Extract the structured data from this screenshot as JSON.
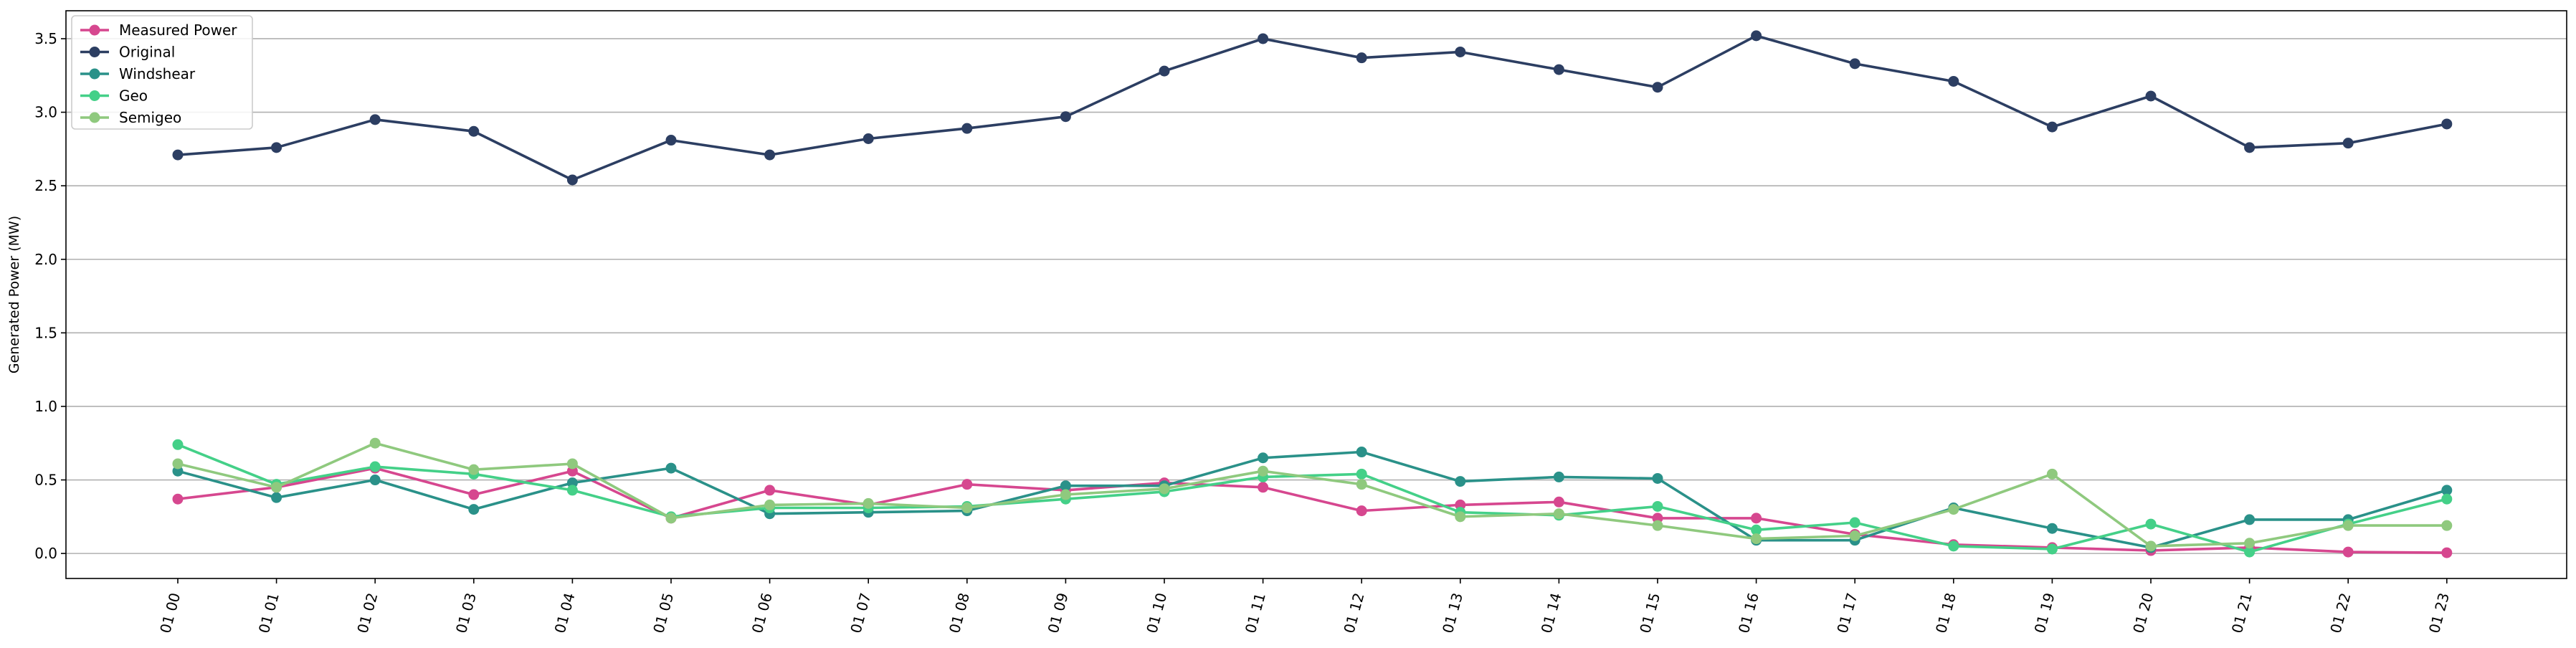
{
  "chart_data": {
    "type": "line",
    "title": "",
    "xlabel": "",
    "ylabel": "Generated Power (MW)",
    "categories": [
      "01 00",
      "01 01",
      "01 02",
      "01 03",
      "01 04",
      "01 05",
      "01 06",
      "01 07",
      "01 08",
      "01 09",
      "01 10",
      "01 11",
      "01 12",
      "01 13",
      "01 14",
      "01 15",
      "01 16",
      "01 17",
      "01 18",
      "01 19",
      "01 20",
      "01 21",
      "01 22",
      "01 23"
    ],
    "ylim": [
      -0.17,
      3.69
    ],
    "yticks": [
      "0.0",
      "0.5",
      "1.0",
      "1.5",
      "2.0",
      "2.5",
      "3.0",
      "3.5"
    ],
    "grid": "horizontal",
    "legend_position": "top-left",
    "series": [
      {
        "name": "Measured Power",
        "color": "#d6478f",
        "values": [
          0.37,
          0.45,
          0.58,
          0.4,
          0.56,
          0.24,
          0.43,
          0.33,
          0.47,
          0.43,
          0.48,
          0.45,
          0.29,
          0.33,
          0.35,
          0.24,
          0.24,
          0.13,
          0.06,
          0.04,
          0.02,
          0.04,
          0.01,
          0.005
        ]
      },
      {
        "name": "Original",
        "color": "#2c3e62",
        "values": [
          2.71,
          2.76,
          2.95,
          2.87,
          2.54,
          2.81,
          2.71,
          2.82,
          2.89,
          2.97,
          3.28,
          3.5,
          3.37,
          3.41,
          3.29,
          3.17,
          3.52,
          3.33,
          3.21,
          2.9,
          3.11,
          2.76,
          2.79,
          2.92
        ]
      },
      {
        "name": "Windshear",
        "color": "#2a9189",
        "values": [
          0.56,
          0.38,
          0.5,
          0.3,
          0.48,
          0.58,
          0.27,
          0.28,
          0.29,
          0.46,
          0.46,
          0.65,
          0.69,
          0.49,
          0.52,
          0.51,
          0.09,
          0.09,
          0.31,
          0.17,
          0.04,
          0.23,
          0.23,
          0.43
        ]
      },
      {
        "name": "Geo",
        "color": "#44d088",
        "values": [
          0.74,
          0.47,
          0.59,
          0.54,
          0.43,
          0.25,
          0.31,
          0.31,
          0.32,
          0.37,
          0.42,
          0.52,
          0.54,
          0.28,
          0.26,
          0.32,
          0.16,
          0.21,
          0.05,
          0.03,
          0.2,
          0.01,
          0.2,
          0.37
        ]
      },
      {
        "name": "Semigeo",
        "color": "#8fc97e",
        "values": [
          0.61,
          0.45,
          0.75,
          0.57,
          0.61,
          0.24,
          0.33,
          0.34,
          0.31,
          0.4,
          0.44,
          0.56,
          0.47,
          0.25,
          0.27,
          0.19,
          0.1,
          0.12,
          0.3,
          0.54,
          0.05,
          0.07,
          0.19,
          0.19
        ]
      }
    ]
  }
}
